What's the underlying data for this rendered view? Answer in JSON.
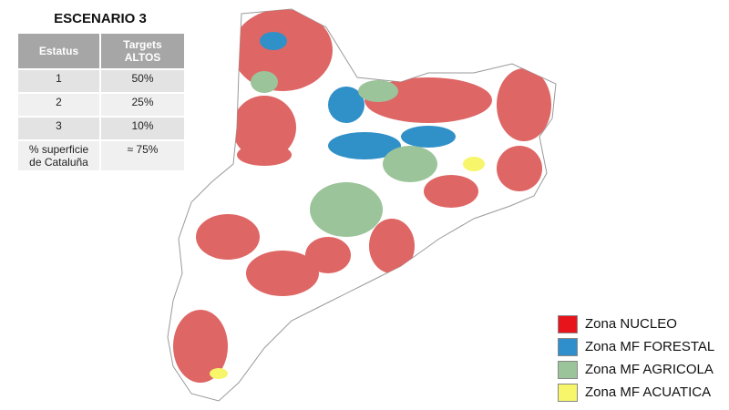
{
  "title": "ESCENARIO 3",
  "table": {
    "header": [
      "Estatus",
      "Targets ALTOS"
    ],
    "rows": [
      [
        "1",
        "50%"
      ],
      [
        "2",
        "25%"
      ],
      [
        "3",
        "10%"
      ],
      [
        "% superficie de Cataluña",
        "≈ 75%"
      ]
    ]
  },
  "legend": [
    {
      "label": "Zona NUCLEO",
      "color": "#e8141b"
    },
    {
      "label": "Zona MF FORESTAL",
      "color": "#2e8fcc"
    },
    {
      "label": "Zona MF AGRICOLA",
      "color": "#9cc49a"
    },
    {
      "label": "Zona MF ACUATICA",
      "color": "#f7f56a"
    }
  ]
}
